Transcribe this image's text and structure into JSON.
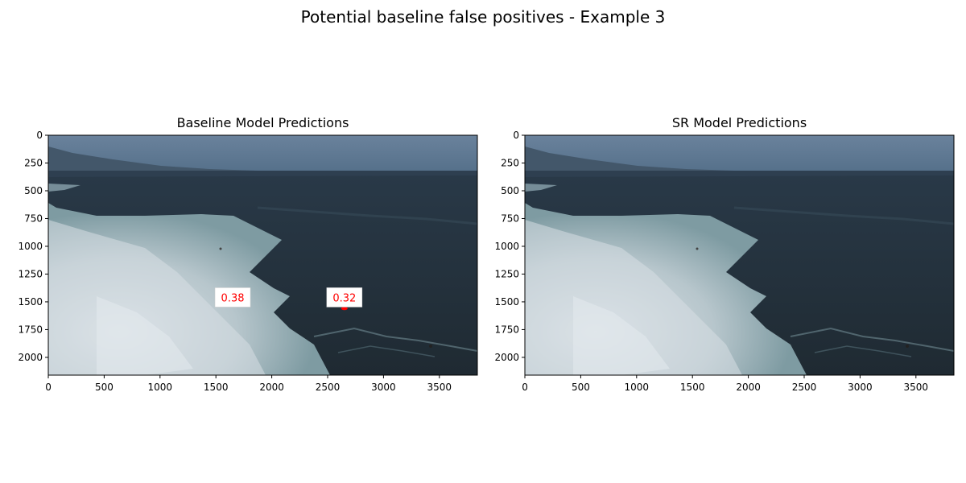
{
  "figure": {
    "suptitle": "Potential baseline false positives - Example 3"
  },
  "chart_data": [
    {
      "type": "image",
      "title": "Baseline Model Predictions",
      "image_size": [
        3840,
        2160
      ],
      "xlim": [
        0,
        3840
      ],
      "ylim": [
        2160,
        0
      ],
      "xticks": [
        0,
        500,
        1000,
        1500,
        2000,
        2500,
        3000,
        3500
      ],
      "yticks": [
        0,
        250,
        500,
        750,
        1000,
        1250,
        1500,
        1750,
        2000
      ],
      "annotations": [
        {
          "label": "0.38",
          "x": 1650,
          "y": 1460,
          "color": "#ff0000"
        },
        {
          "label": "0.32",
          "x": 2650,
          "y": 1460,
          "color": "#ff0000"
        }
      ],
      "marks": [
        {
          "x": 2650,
          "y": 1560,
          "color": "#ff0000"
        }
      ]
    },
    {
      "type": "image",
      "title": "SR Model Predictions",
      "image_size": [
        3840,
        2160
      ],
      "xlim": [
        0,
        3840
      ],
      "ylim": [
        2160,
        0
      ],
      "xticks": [
        0,
        500,
        1000,
        1500,
        2000,
        2500,
        3000,
        3500
      ],
      "yticks": [
        0,
        250,
        500,
        750,
        1000,
        1250,
        1500,
        1750,
        2000
      ],
      "annotations": [],
      "marks": []
    }
  ],
  "colors": {
    "sky": "#5d7894",
    "ocean": "#23303a",
    "foam": "#c9d3d8",
    "annotation": "#ff0000"
  }
}
